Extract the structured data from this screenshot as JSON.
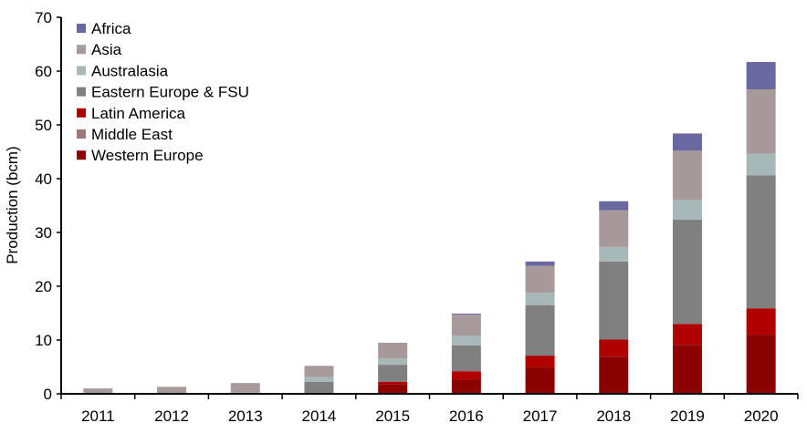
{
  "chart_data": {
    "type": "bar",
    "stacked": true,
    "title": "",
    "xlabel": "",
    "ylabel": "Production (bcm)",
    "ylim": [
      0,
      70
    ],
    "yticks": [
      0,
      10,
      20,
      30,
      40,
      50,
      60,
      70
    ],
    "grid": false,
    "legend_position": "top-left",
    "categories": [
      "2011",
      "2012",
      "2013",
      "2014",
      "2015",
      "2016",
      "2017",
      "2018",
      "2019",
      "2020"
    ],
    "series": [
      {
        "name": "Western Europe",
        "color": "#8b0000",
        "values": [
          0,
          0,
          0,
          0,
          1.8,
          2.7,
          4.9,
          6.9,
          9.1,
          11.0
        ]
      },
      {
        "name": "Middle East",
        "color": "#a07878",
        "values": [
          0,
          0,
          0,
          0,
          0,
          0,
          0,
          0,
          0,
          0
        ]
      },
      {
        "name": "Latin America",
        "color": "#b00000",
        "values": [
          0,
          0,
          0,
          0,
          0.4,
          1.5,
          2.2,
          3.2,
          3.9,
          4.9
        ]
      },
      {
        "name": "Eastern Europe & FSU",
        "color": "#808080",
        "values": [
          0,
          0,
          0.2,
          2.2,
          3.2,
          4.8,
          9.4,
          14.5,
          19.4,
          24.7
        ]
      },
      {
        "name": "Australasia",
        "color": "#a8b8b8",
        "values": [
          0,
          0,
          0,
          0.9,
          1.2,
          1.8,
          2.3,
          2.7,
          3.7,
          4.0
        ]
      },
      {
        "name": "Asia",
        "color": "#a89a9a",
        "values": [
          1.0,
          1.3,
          1.8,
          2.1,
          2.9,
          3.9,
          5.0,
          6.8,
          9.1,
          12.0
        ]
      },
      {
        "name": "Africa",
        "color": "#6a68a0",
        "values": [
          0,
          0,
          0,
          0,
          0,
          0.2,
          0.8,
          1.7,
          3.2,
          5.1
        ]
      }
    ],
    "legend_order": [
      "Africa",
      "Asia",
      "Australasia",
      "Eastern Europe & FSU",
      "Latin America",
      "Middle East",
      "Western Europe"
    ]
  }
}
